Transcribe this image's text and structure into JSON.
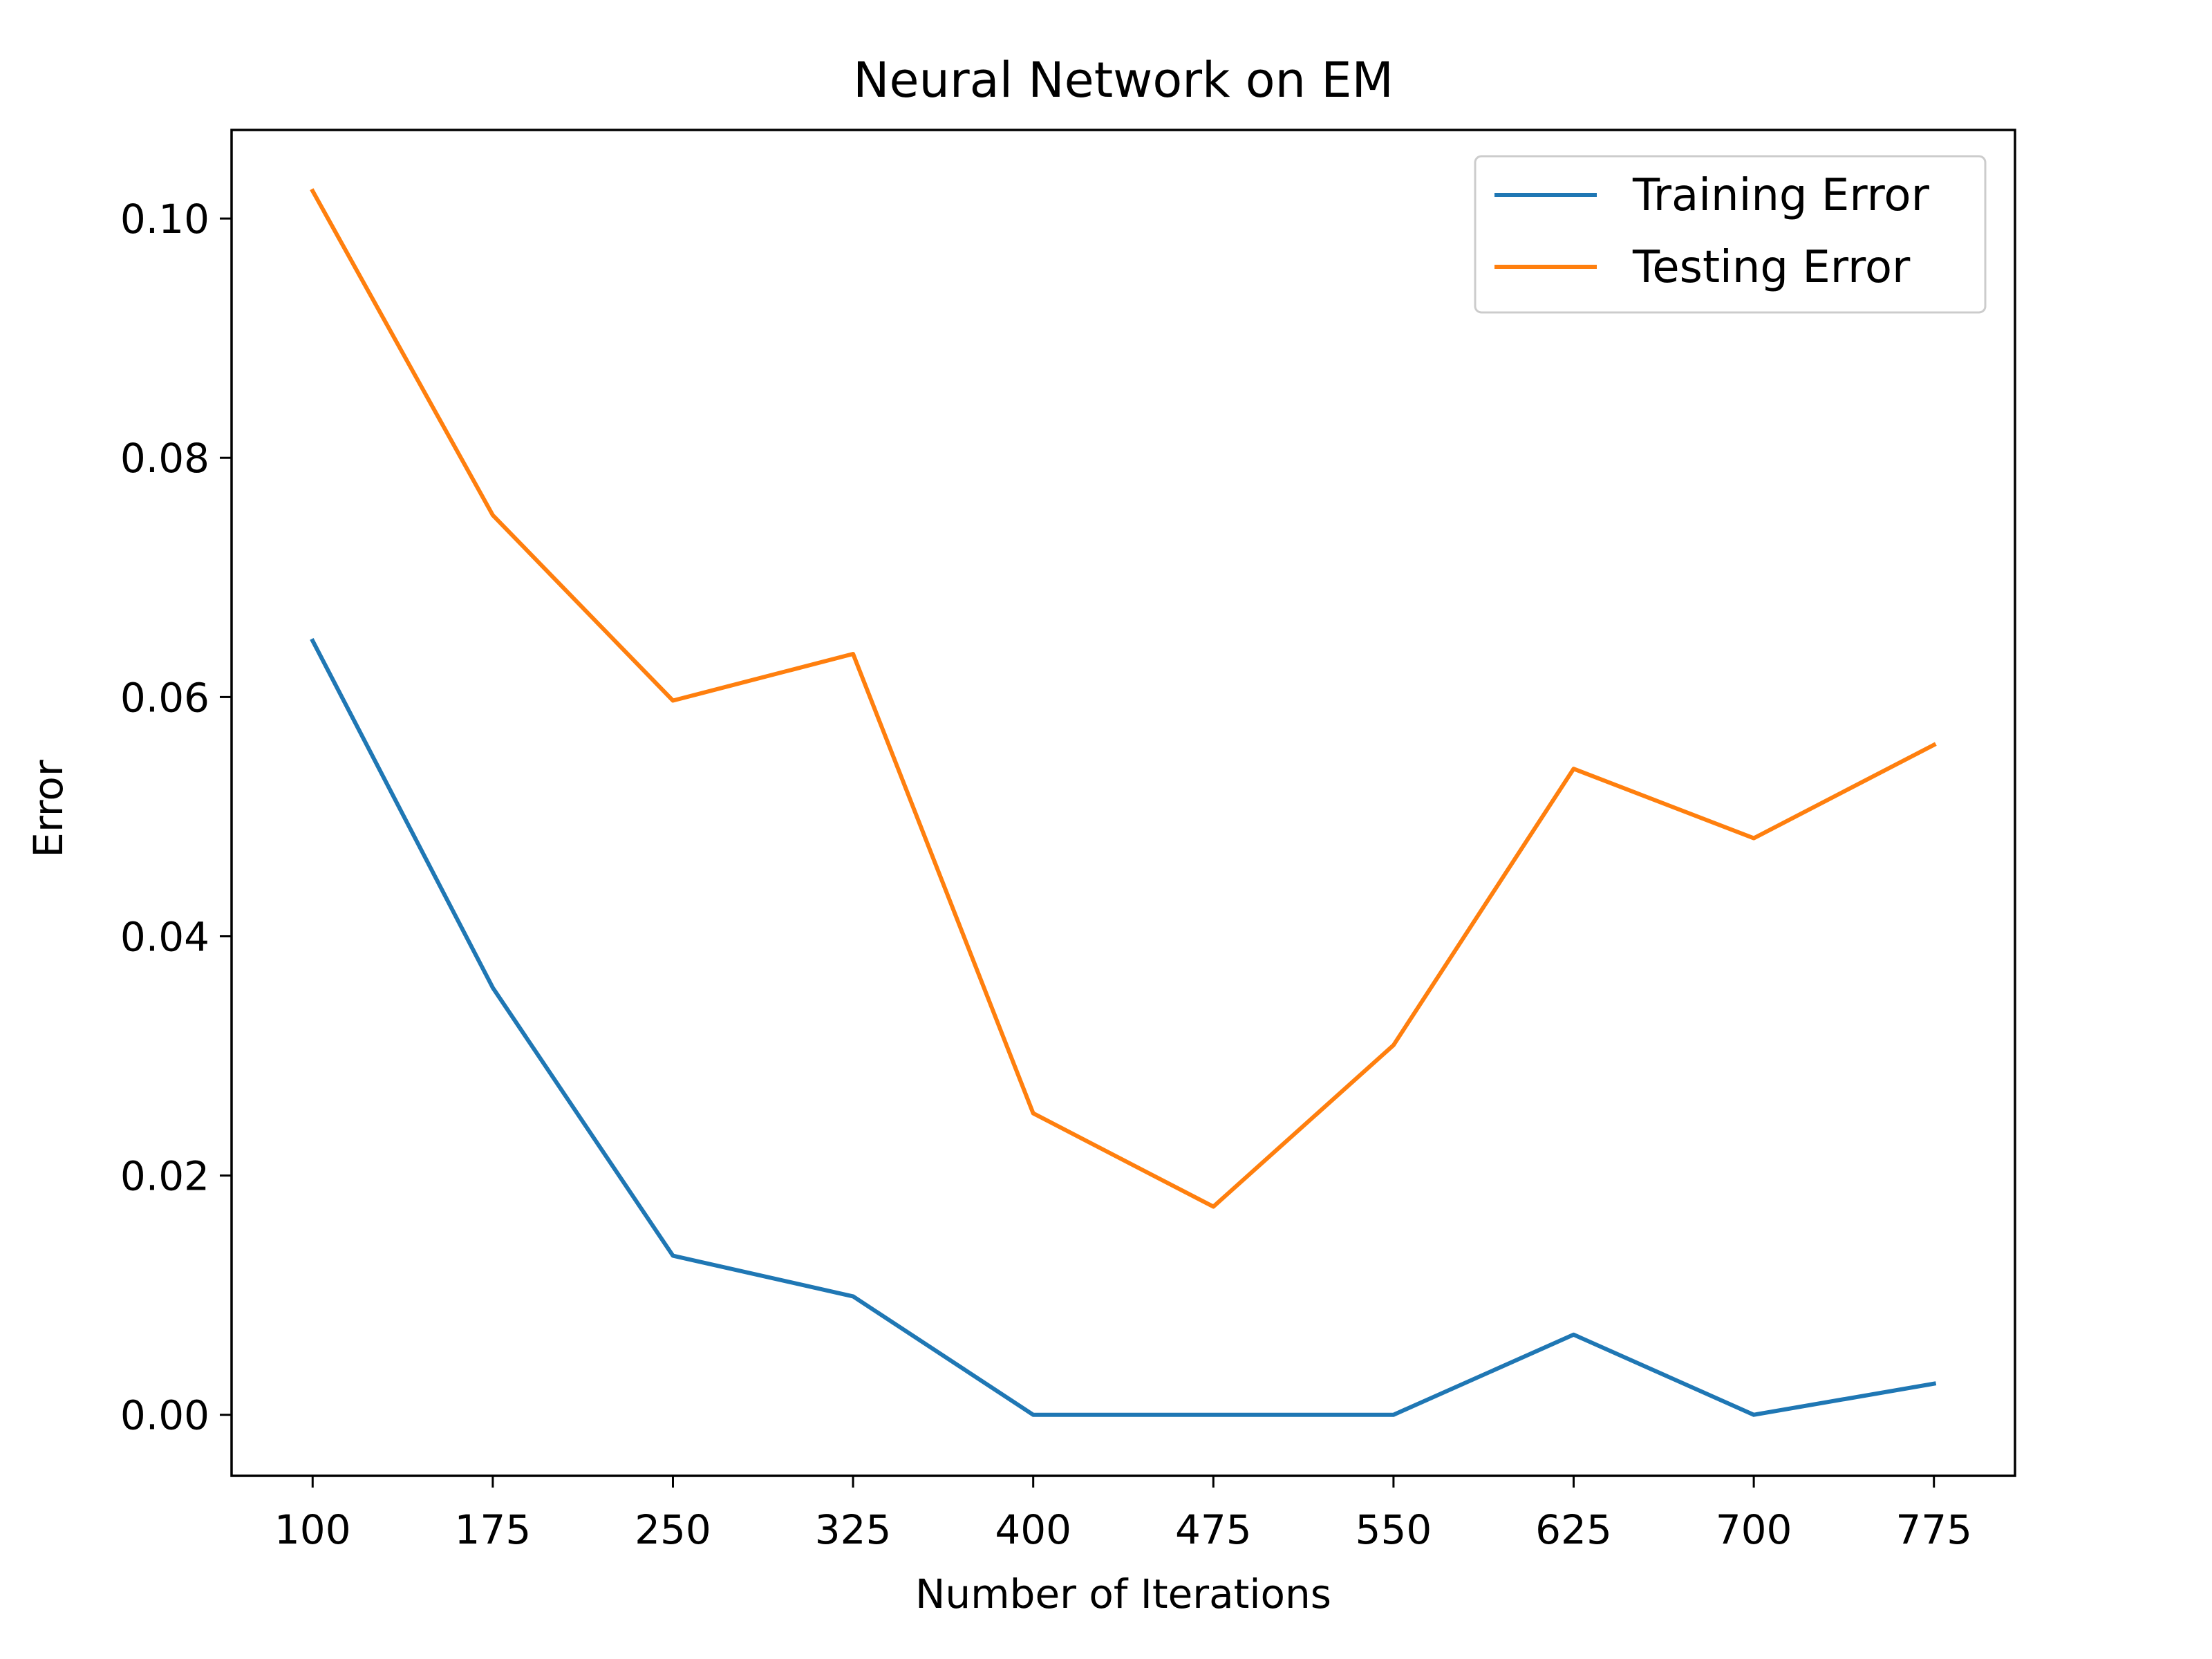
{
  "chart_data": {
    "type": "line",
    "title": "Neural Network on EM",
    "xlabel": "Number of Iterations",
    "ylabel": "Error",
    "x": [
      100,
      175,
      250,
      325,
      400,
      475,
      550,
      625,
      700,
      775
    ],
    "x_tick_labels": [
      "100",
      "175",
      "250",
      "325",
      "400",
      "475",
      "550",
      "625",
      "700",
      "775"
    ],
    "y_tick_values": [
      0.0,
      0.02,
      0.04,
      0.06,
      0.08,
      0.1
    ],
    "y_tick_labels": [
      "0.00",
      "0.02",
      "0.04",
      "0.06",
      "0.08",
      "0.10"
    ],
    "xlim": [
      66.25,
      808.75
    ],
    "ylim": [
      -0.0051,
      0.1074
    ],
    "grid": false,
    "legend_position": "top-right",
    "series": [
      {
        "name": "Training Error",
        "color": "#1f77b4",
        "values": [
          0.0647,
          0.0357,
          0.0133,
          0.0099,
          0.0,
          0.0,
          0.0,
          0.0067,
          0.0,
          0.0026
        ]
      },
      {
        "name": "Testing Error",
        "color": "#ff7f0e",
        "values": [
          0.1023,
          0.0752,
          0.0597,
          0.0636,
          0.0252,
          0.0174,
          0.0309,
          0.054,
          0.0482,
          0.056
        ]
      }
    ]
  }
}
